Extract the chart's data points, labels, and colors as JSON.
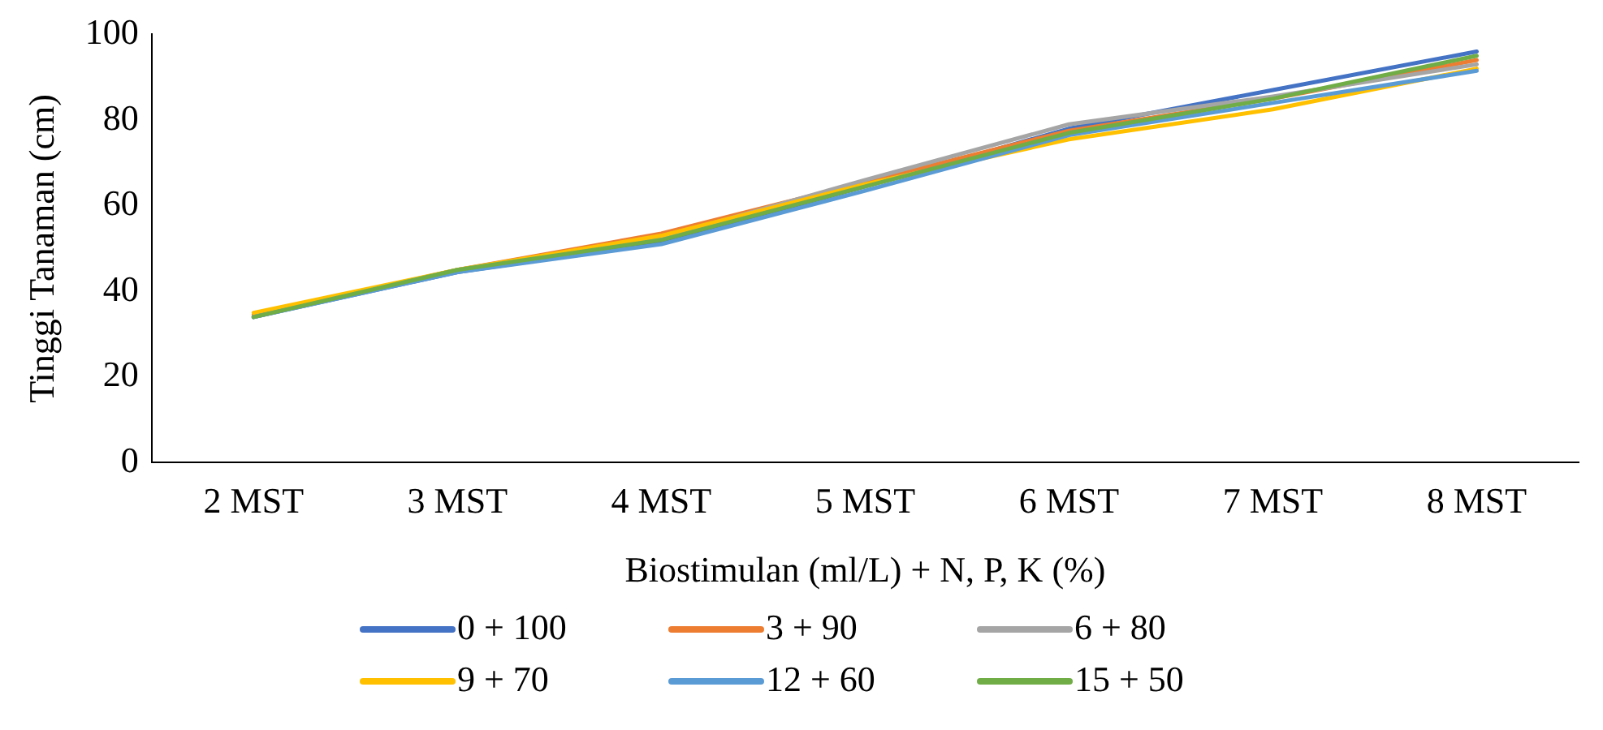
{
  "chart_data": {
    "type": "line",
    "xlabel": "Biostimulan (ml/L) + N, P, K (%)",
    "ylabel": "Tinggi Tanaman (cm)",
    "categories": [
      "2 MST",
      "3 MST",
      "4 MST",
      "5 MST",
      "6 MST",
      "7 MST",
      "8 MST"
    ],
    "ylim": [
      0,
      100
    ],
    "yticks": [
      0,
      20,
      40,
      60,
      80,
      100
    ],
    "grid": false,
    "legend": "bottom",
    "marker": "none",
    "line_style": "solid",
    "series": [
      {
        "name": "0 + 100",
        "color": "#4472c4",
        "values": [
          34,
          44.5,
          51.5,
          64.5,
          78,
          87,
          96
        ]
      },
      {
        "name": "3 + 90",
        "color": "#ed7d31",
        "values": [
          34.5,
          45,
          53.5,
          65.5,
          77.5,
          85,
          94
        ]
      },
      {
        "name": "6 + 80",
        "color": "#a5a5a5",
        "values": [
          34,
          45,
          52.5,
          66,
          79,
          85.5,
          93
        ]
      },
      {
        "name": "9 + 70",
        "color": "#ffc000",
        "values": [
          35,
          45,
          53,
          65,
          75.5,
          82.5,
          92
        ]
      },
      {
        "name": "12 + 60",
        "color": "#5b9bd5",
        "values": [
          34,
          44.5,
          51,
          63.5,
          76.5,
          84,
          91.5
        ]
      },
      {
        "name": "15 + 50",
        "color": "#70ad47",
        "values": [
          34,
          45,
          52,
          64.5,
          77,
          85,
          95
        ]
      }
    ]
  }
}
